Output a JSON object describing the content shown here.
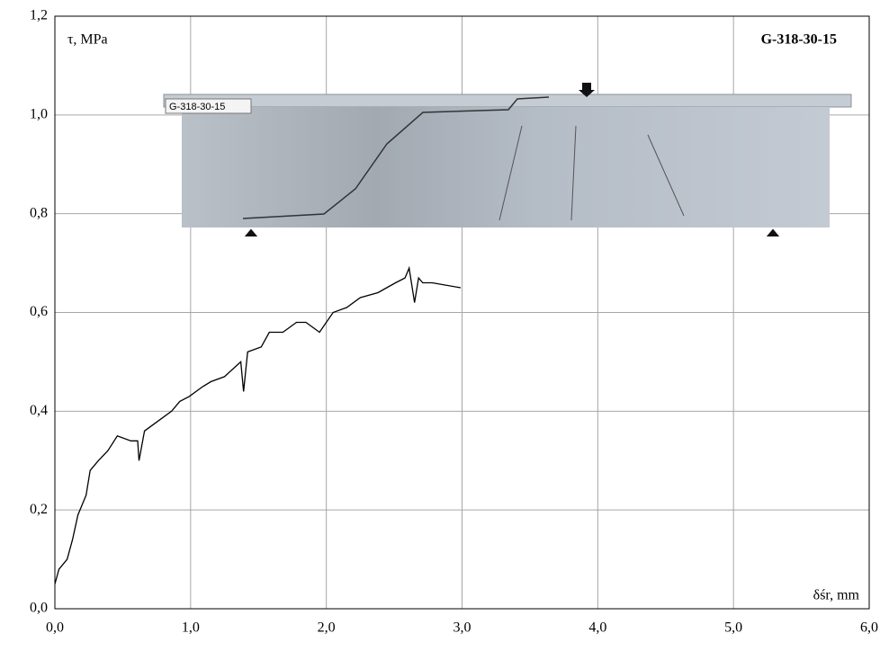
{
  "chart_data": {
    "type": "line",
    "title": "G-318-30-15",
    "photo_label": "G-318-30-15",
    "x_label": "δśr, mm",
    "y_label": "τ, MPa",
    "grid": true,
    "xlim": [
      0,
      6
    ],
    "ylim": [
      0,
      1.2
    ],
    "xticks": [
      {
        "value": 0,
        "label": "0,0"
      },
      {
        "value": 1,
        "label": "1,0"
      },
      {
        "value": 2,
        "label": "2,0"
      },
      {
        "value": 3,
        "label": "3,0"
      },
      {
        "value": 4,
        "label": "4,0"
      },
      {
        "value": 5,
        "label": "5,0"
      },
      {
        "value": 6,
        "label": "6,0"
      }
    ],
    "yticks": [
      {
        "value": 0,
        "label": "0,0"
      },
      {
        "value": 0.2,
        "label": "0,2"
      },
      {
        "value": 0.4,
        "label": "0,4"
      },
      {
        "value": 0.6,
        "label": "0,6"
      },
      {
        "value": 0.8,
        "label": "0,8"
      },
      {
        "value": 1.0,
        "label": "1,0"
      },
      {
        "value": 1.2,
        "label": "1,2"
      }
    ],
    "series": [
      {
        "color": "#000000",
        "x": [
          0,
          0.03,
          0.09,
          0.13,
          0.17,
          0.23,
          0.26,
          0.32,
          0.39,
          0.46,
          0.56,
          0.61,
          0.62,
          0.66,
          0.76,
          0.86,
          0.92,
          0.99,
          1.09,
          1.15,
          1.25,
          1.37,
          1.39,
          1.42,
          1.52,
          1.58,
          1.68,
          1.78,
          1.85,
          1.95,
          2.05,
          2.15,
          2.25,
          2.38,
          2.51,
          2.58,
          2.61,
          2.65,
          2.68,
          2.71,
          2.78,
          2.99
        ],
        "values": [
          0.05,
          0.08,
          0.1,
          0.14,
          0.19,
          0.23,
          0.28,
          0.3,
          0.32,
          0.35,
          0.34,
          0.34,
          0.3,
          0.36,
          0.38,
          0.4,
          0.42,
          0.43,
          0.45,
          0.46,
          0.47,
          0.5,
          0.44,
          0.52,
          0.53,
          0.56,
          0.56,
          0.58,
          0.58,
          0.56,
          0.6,
          0.61,
          0.63,
          0.64,
          0.66,
          0.67,
          0.69,
          0.62,
          0.67,
          0.66,
          0.66,
          0.65
        ]
      }
    ]
  }
}
